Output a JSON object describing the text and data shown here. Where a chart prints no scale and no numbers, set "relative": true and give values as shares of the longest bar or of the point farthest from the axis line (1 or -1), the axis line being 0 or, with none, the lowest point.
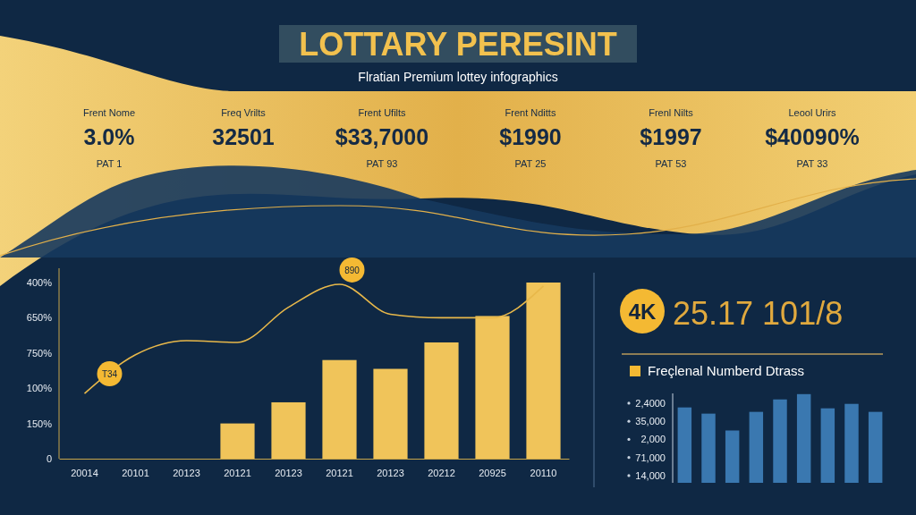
{
  "chart_data": [
    {
      "type": "other",
      "title": "LOTTARY PERESINT",
      "subtitle": "Flratian Premium lottey infographics",
      "annotations": [
        "Frent Nome",
        "3.0%",
        "PAT 1",
        "Freq Vrilts",
        "32501",
        "Frent Ufilts",
        "$33,7000",
        "PAT 93",
        "Frent Nditts",
        "$1990",
        "PAT 25",
        "Frenl Nilts",
        "$1997",
        "PAT 53",
        "Leool Urirs",
        "$40090%",
        "PAT 33"
      ]
    },
    {
      "type": "bar",
      "relative": true,
      "categories": [
        "20014",
        "20101",
        "20123",
        "20121",
        "20123",
        "20121",
        "20123",
        "20212",
        "20925",
        "20110"
      ],
      "annotations": [
        "400%",
        "650%",
        "750%",
        "100%",
        "150%",
        "0",
        "T34",
        "890"
      ],
      "series": [
        {
          "type": "bar",
          "color": "#f0c45a",
          "values": [
            null,
            null,
            null,
            0.2,
            0.32,
            0.56,
            0.51,
            0.66,
            0.81,
            1.0
          ]
        },
        {
          "type": "line",
          "color": "#e8b84a",
          "values": [
            0.37,
            0.59,
            0.67,
            0.66,
            0.86,
            0.99,
            0.82,
            0.8,
            0.8,
            0.98
          ]
        }
      ]
    },
    {
      "type": "other",
      "annotations": [
        "4K",
        "25.17 101/8"
      ]
    },
    {
      "type": "bar",
      "relative": true,
      "title": "Freçlenal Numberd Dtrass",
      "categories": [
        null,
        null,
        null,
        null,
        null,
        null,
        null,
        null,
        null
      ],
      "values": [
        0.85,
        0.78,
        0.59,
        0.8,
        0.94,
        1.0,
        0.84,
        0.89,
        0.8
      ],
      "color": "#3a78b0",
      "annotations": [
        "2,4000",
        "35,000",
        "2,000",
        "71,000",
        "14,000"
      ]
    }
  ]
}
